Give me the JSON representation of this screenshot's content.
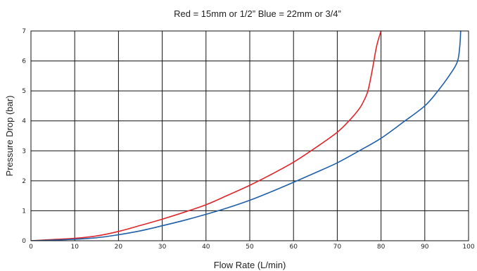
{
  "chart_data": {
    "type": "line",
    "title": "Red = 15mm or 1/2”   Blue = 22mm or 3/4”",
    "xlabel": "Flow Rate (L/min)",
    "ylabel": "Pressure Drop (bar)",
    "xlim": [
      0,
      100
    ],
    "ylim": [
      0,
      7
    ],
    "xticks": [
      "0",
      "10",
      "20",
      "30",
      "40",
      "50",
      "60",
      "70",
      "80",
      "90",
      "100"
    ],
    "yticks": [
      "0",
      "1",
      "2",
      "3",
      "4",
      "5",
      "6",
      "7"
    ],
    "grid": true,
    "series": [
      {
        "color": "#e0262b",
        "points": [
          [
            0,
            0
          ],
          [
            5,
            0.04
          ],
          [
            10,
            0.08
          ],
          [
            15,
            0.16
          ],
          [
            20,
            0.31
          ],
          [
            25,
            0.51
          ],
          [
            30,
            0.72
          ],
          [
            35,
            0.95
          ],
          [
            40,
            1.2
          ],
          [
            45,
            1.52
          ],
          [
            50,
            1.85
          ],
          [
            55,
            2.22
          ],
          [
            60,
            2.62
          ],
          [
            65,
            3.1
          ],
          [
            70,
            3.62
          ],
          [
            73,
            4.05
          ],
          [
            75,
            4.4
          ],
          [
            76,
            4.65
          ],
          [
            77,
            5.0
          ],
          [
            78,
            5.7
          ],
          [
            79,
            6.5
          ],
          [
            80,
            7.0
          ]
        ]
      },
      {
        "color": "#1f5fa8",
        "points": [
          [
            0,
            0
          ],
          [
            5,
            0.02
          ],
          [
            10,
            0.05
          ],
          [
            15,
            0.1
          ],
          [
            20,
            0.2
          ],
          [
            25,
            0.33
          ],
          [
            30,
            0.5
          ],
          [
            35,
            0.68
          ],
          [
            40,
            0.88
          ],
          [
            45,
            1.1
          ],
          [
            50,
            1.35
          ],
          [
            55,
            1.64
          ],
          [
            60,
            1.95
          ],
          [
            65,
            2.27
          ],
          [
            70,
            2.6
          ],
          [
            75,
            3.0
          ],
          [
            80,
            3.42
          ],
          [
            85,
            3.95
          ],
          [
            90,
            4.5
          ],
          [
            93,
            5.0
          ],
          [
            96,
            5.6
          ],
          [
            97.5,
            6.0
          ],
          [
            98,
            6.5
          ],
          [
            98.2,
            7.0
          ]
        ]
      }
    ]
  }
}
